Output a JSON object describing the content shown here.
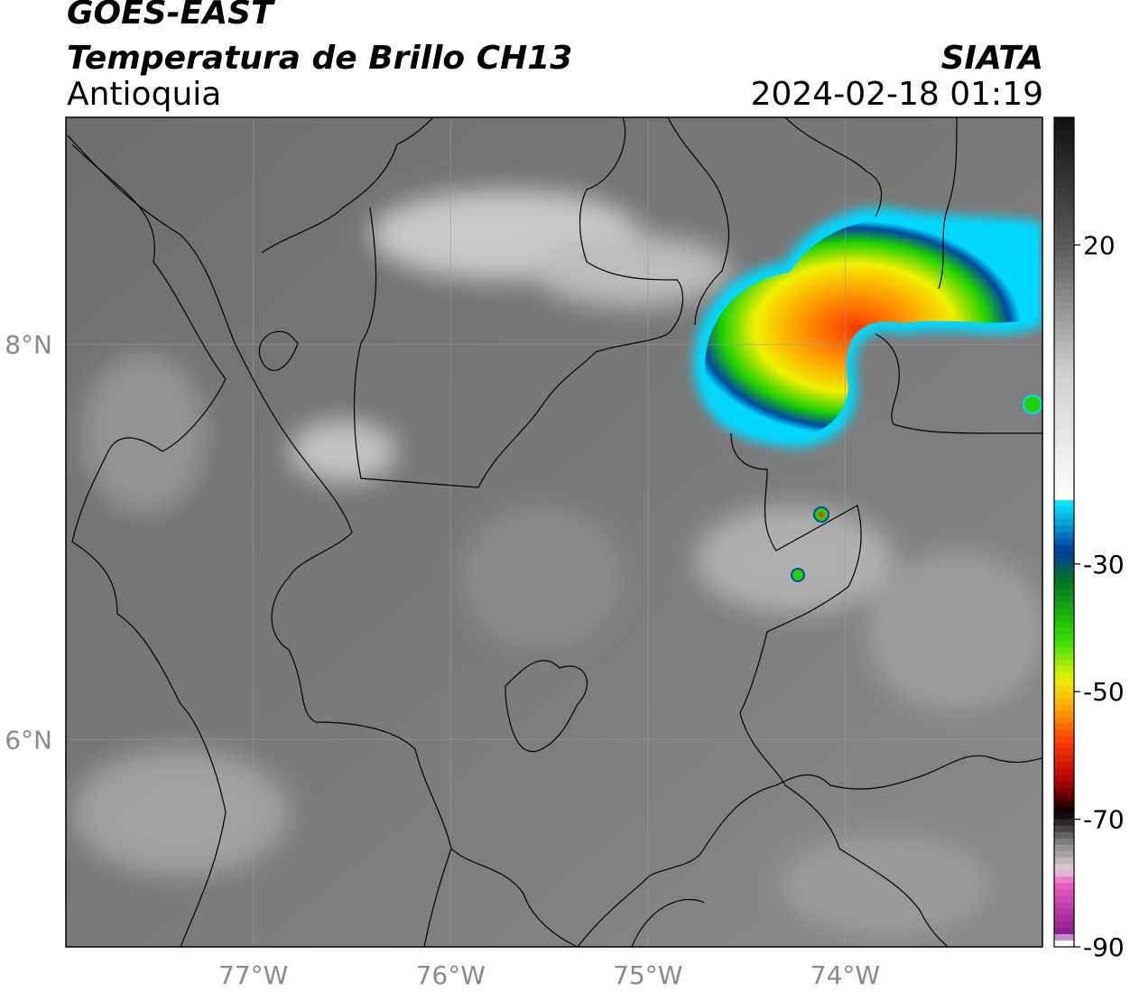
{
  "header": {
    "satellite": "GOES-EAST",
    "product": "Temperatura de Brillo CH13",
    "region": "Antioquia",
    "organization": "SIATA",
    "datetime": "2024-02-18 01:19"
  },
  "map": {
    "lon_range": [
      -77.95,
      -73.0
    ],
    "lat_range": [
      4.95,
      9.15
    ],
    "lon_ticks": [
      {
        "value": -77,
        "label": "77°W"
      },
      {
        "value": -76,
        "label": "76°W"
      },
      {
        "value": -75,
        "label": "75°W"
      },
      {
        "value": -74,
        "label": "74°W"
      }
    ],
    "lat_ticks": [
      {
        "value": 8,
        "label": "8°N"
      },
      {
        "value": 6,
        "label": "6°N"
      }
    ],
    "gridlines": true,
    "background_icon": "satellite-infrared-imagery"
  },
  "colorbar": {
    "range": [
      -90,
      40
    ],
    "ticks": [
      {
        "value": 20,
        "label": "20"
      },
      {
        "value": -30,
        "label": "-30"
      },
      {
        "value": -50,
        "label": "-50"
      },
      {
        "value": -70,
        "label": "-70"
      },
      {
        "value": -90,
        "label": "-90"
      }
    ],
    "stops": [
      {
        "value": 40,
        "color": "#101010"
      },
      {
        "value": 20,
        "color": "#5a5a5a"
      },
      {
        "value": 0,
        "color": "#cfcfcf"
      },
      {
        "value": -20,
        "color": "#ffffff"
      },
      {
        "value": -20.5,
        "color": "#00e5ff"
      },
      {
        "value": -28,
        "color": "#003a9c"
      },
      {
        "value": -33,
        "color": "#007a20"
      },
      {
        "value": -42,
        "color": "#36e000"
      },
      {
        "value": -48,
        "color": "#e8f000"
      },
      {
        "value": -52,
        "color": "#ffb000"
      },
      {
        "value": -58,
        "color": "#ff3a00"
      },
      {
        "value": -64,
        "color": "#b00000"
      },
      {
        "value": -69,
        "color": "#080000"
      },
      {
        "value": -74,
        "color": "#8a8a8a"
      },
      {
        "value": -78,
        "color": "#e0d0d8"
      },
      {
        "value": -80,
        "color": "#ee60c0"
      },
      {
        "value": -88,
        "color": "#8a1890"
      },
      {
        "value": -89,
        "color": "#ffffff"
      }
    ]
  }
}
